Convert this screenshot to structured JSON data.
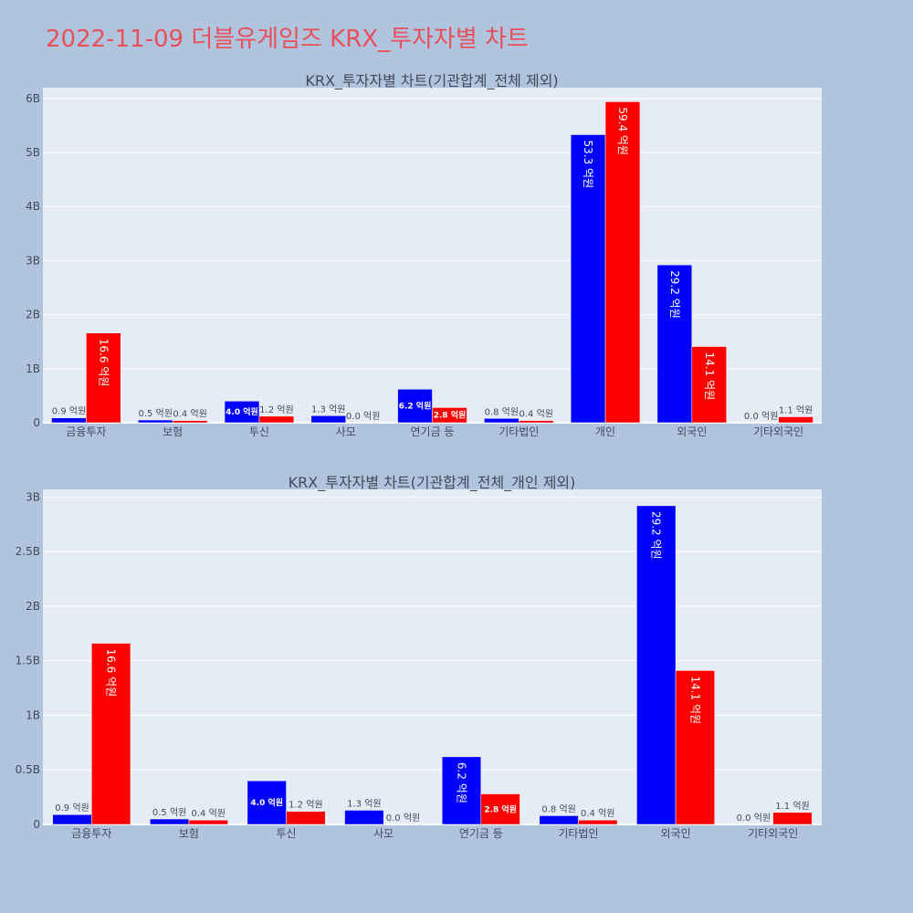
{
  "page": {
    "title": "2022-11-09 더블유게임즈 KRX_투자자별 차트"
  },
  "colors": {
    "background": "#b0c4de",
    "plot_bg": "#e5ecf6",
    "sell": "#0000ff",
    "buy": "#ff0000",
    "title": "#e8505b"
  },
  "chart_data": [
    {
      "type": "bar",
      "title": "KRX_투자자별 차트(기관합계_전체 제외)",
      "categories": [
        "금융투자",
        "보험",
        "투신",
        "사모",
        "연기금 등",
        "기타법인",
        "개인",
        "외국인",
        "기타외국인"
      ],
      "series": [
        {
          "color": "#0000ff",
          "values": [
            0.09,
            0.05,
            0.4,
            0.13,
            0.62,
            0.08,
            5.33,
            2.92,
            0.0
          ],
          "labels": [
            "0.9 억원",
            "0.5 억원",
            "4.0 억원",
            "1.3 억원",
            "6.2 억원",
            "0.8 억원",
            "53.3 억원",
            "29.2 억원",
            "0.0 억원"
          ]
        },
        {
          "color": "#ff0000",
          "values": [
            1.66,
            0.04,
            0.12,
            0.0,
            0.28,
            0.04,
            5.94,
            1.41,
            0.11
          ],
          "labels": [
            "16.6 억원",
            "0.4 억원",
            "1.2 억원",
            "0.0 억원",
            "2.8 억원",
            "0.4 억원",
            "59.4 억원",
            "14.1 억원",
            "1.1 억원"
          ]
        }
      ],
      "y_ticks": [
        0,
        1,
        2,
        3,
        4,
        5,
        6
      ],
      "y_tick_labels": [
        "0",
        "1B",
        "2B",
        "3B",
        "4B",
        "5B",
        "6B"
      ],
      "ylim": [
        0,
        6.2
      ],
      "value_unit": "billion",
      "grid": true
    },
    {
      "type": "bar",
      "title": "KRX_투자자별 차트(기관합계_전체_개인 제외)",
      "categories": [
        "금융투자",
        "보험",
        "투신",
        "사모",
        "연기금 등",
        "기타법인",
        "외국인",
        "기타외국인"
      ],
      "series": [
        {
          "color": "#0000ff",
          "values": [
            0.09,
            0.05,
            0.4,
            0.13,
            0.62,
            0.08,
            2.92,
            0.0
          ],
          "labels": [
            "0.9 억원",
            "0.5 억원",
            "4.0 억원",
            "1.3 억원",
            "6.2 억원",
            "0.8 억원",
            "29.2 억원",
            "0.0 억원"
          ]
        },
        {
          "color": "#ff0000",
          "values": [
            1.66,
            0.04,
            0.12,
            0.0,
            0.28,
            0.04,
            1.41,
            0.11
          ],
          "labels": [
            "16.6 억원",
            "0.4 억원",
            "1.2 억원",
            "0.0 억원",
            "2.8 억원",
            "0.4 억원",
            "14.1 억원",
            "1.1 억원"
          ]
        }
      ],
      "y_ticks": [
        0,
        0.5,
        1,
        1.5,
        2,
        2.5,
        3
      ],
      "y_tick_labels": [
        "0",
        "0.5B",
        "1B",
        "1.5B",
        "2B",
        "2.5B",
        "3B"
      ],
      "ylim": [
        0,
        3.07
      ],
      "value_unit": "billion",
      "grid": true
    }
  ]
}
